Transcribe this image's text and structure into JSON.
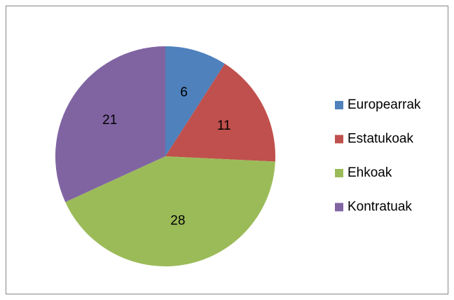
{
  "chart_data": {
    "type": "pie",
    "categories": [
      "Europearrak",
      "Estatukoak",
      "Ehkoak",
      "Kontratuak"
    ],
    "values": [
      6,
      11,
      28,
      21
    ],
    "colors": [
      "#4f81bd",
      "#c0504d",
      "#9bbb59",
      "#8064a2"
    ],
    "legend": "right"
  }
}
